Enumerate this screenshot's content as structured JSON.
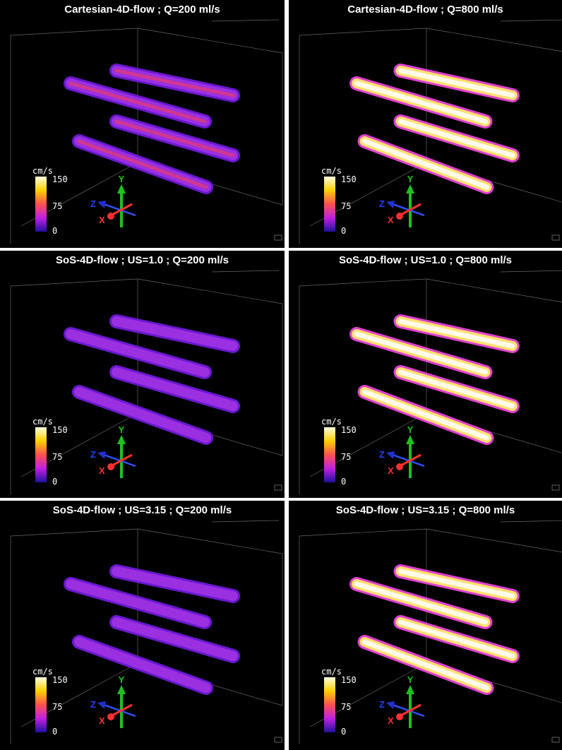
{
  "panels": [
    {
      "title": "Cartesian-4D-flow ; Q=200 ml/s",
      "colorbar": {
        "unit": "cm/s",
        "ticks": [
          "150",
          "75",
          "0"
        ]
      },
      "axes": {
        "x": "X",
        "y": "Y",
        "z": "Z"
      }
    },
    {
      "title": "Cartesian-4D-flow ; Q=800 ml/s",
      "colorbar": {
        "unit": "cm/s",
        "ticks": [
          "150",
          "75",
          "0"
        ]
      },
      "axes": {
        "x": "X",
        "y": "Y",
        "z": "Z"
      }
    },
    {
      "title": "SoS-4D-flow ; US=1.0 ; Q=200 ml/s",
      "colorbar": {
        "unit": "cm/s",
        "ticks": [
          "150",
          "75",
          "0"
        ]
      },
      "axes": {
        "x": "X",
        "y": "Y",
        "z": "Z"
      }
    },
    {
      "title": "SoS-4D-flow ; US=1.0 ; Q=800 ml/s",
      "colorbar": {
        "unit": "cm/s",
        "ticks": [
          "150",
          "75",
          "0"
        ]
      },
      "axes": {
        "x": "X",
        "y": "Y",
        "z": "Z"
      }
    },
    {
      "title": "SoS-4D-flow ; US=3.15 ; Q=200 ml/s",
      "colorbar": {
        "unit": "cm/s",
        "ticks": [
          "150",
          "75",
          "0"
        ]
      },
      "axes": {
        "x": "X",
        "y": "Y",
        "z": "Z"
      }
    },
    {
      "title": "SoS-4D-flow ; US=3.15 ; Q=800 ml/s",
      "colorbar": {
        "unit": "cm/s",
        "ticks": [
          "150",
          "75",
          "0"
        ]
      },
      "axes": {
        "x": "X",
        "y": "Y",
        "z": "Z"
      }
    }
  ]
}
